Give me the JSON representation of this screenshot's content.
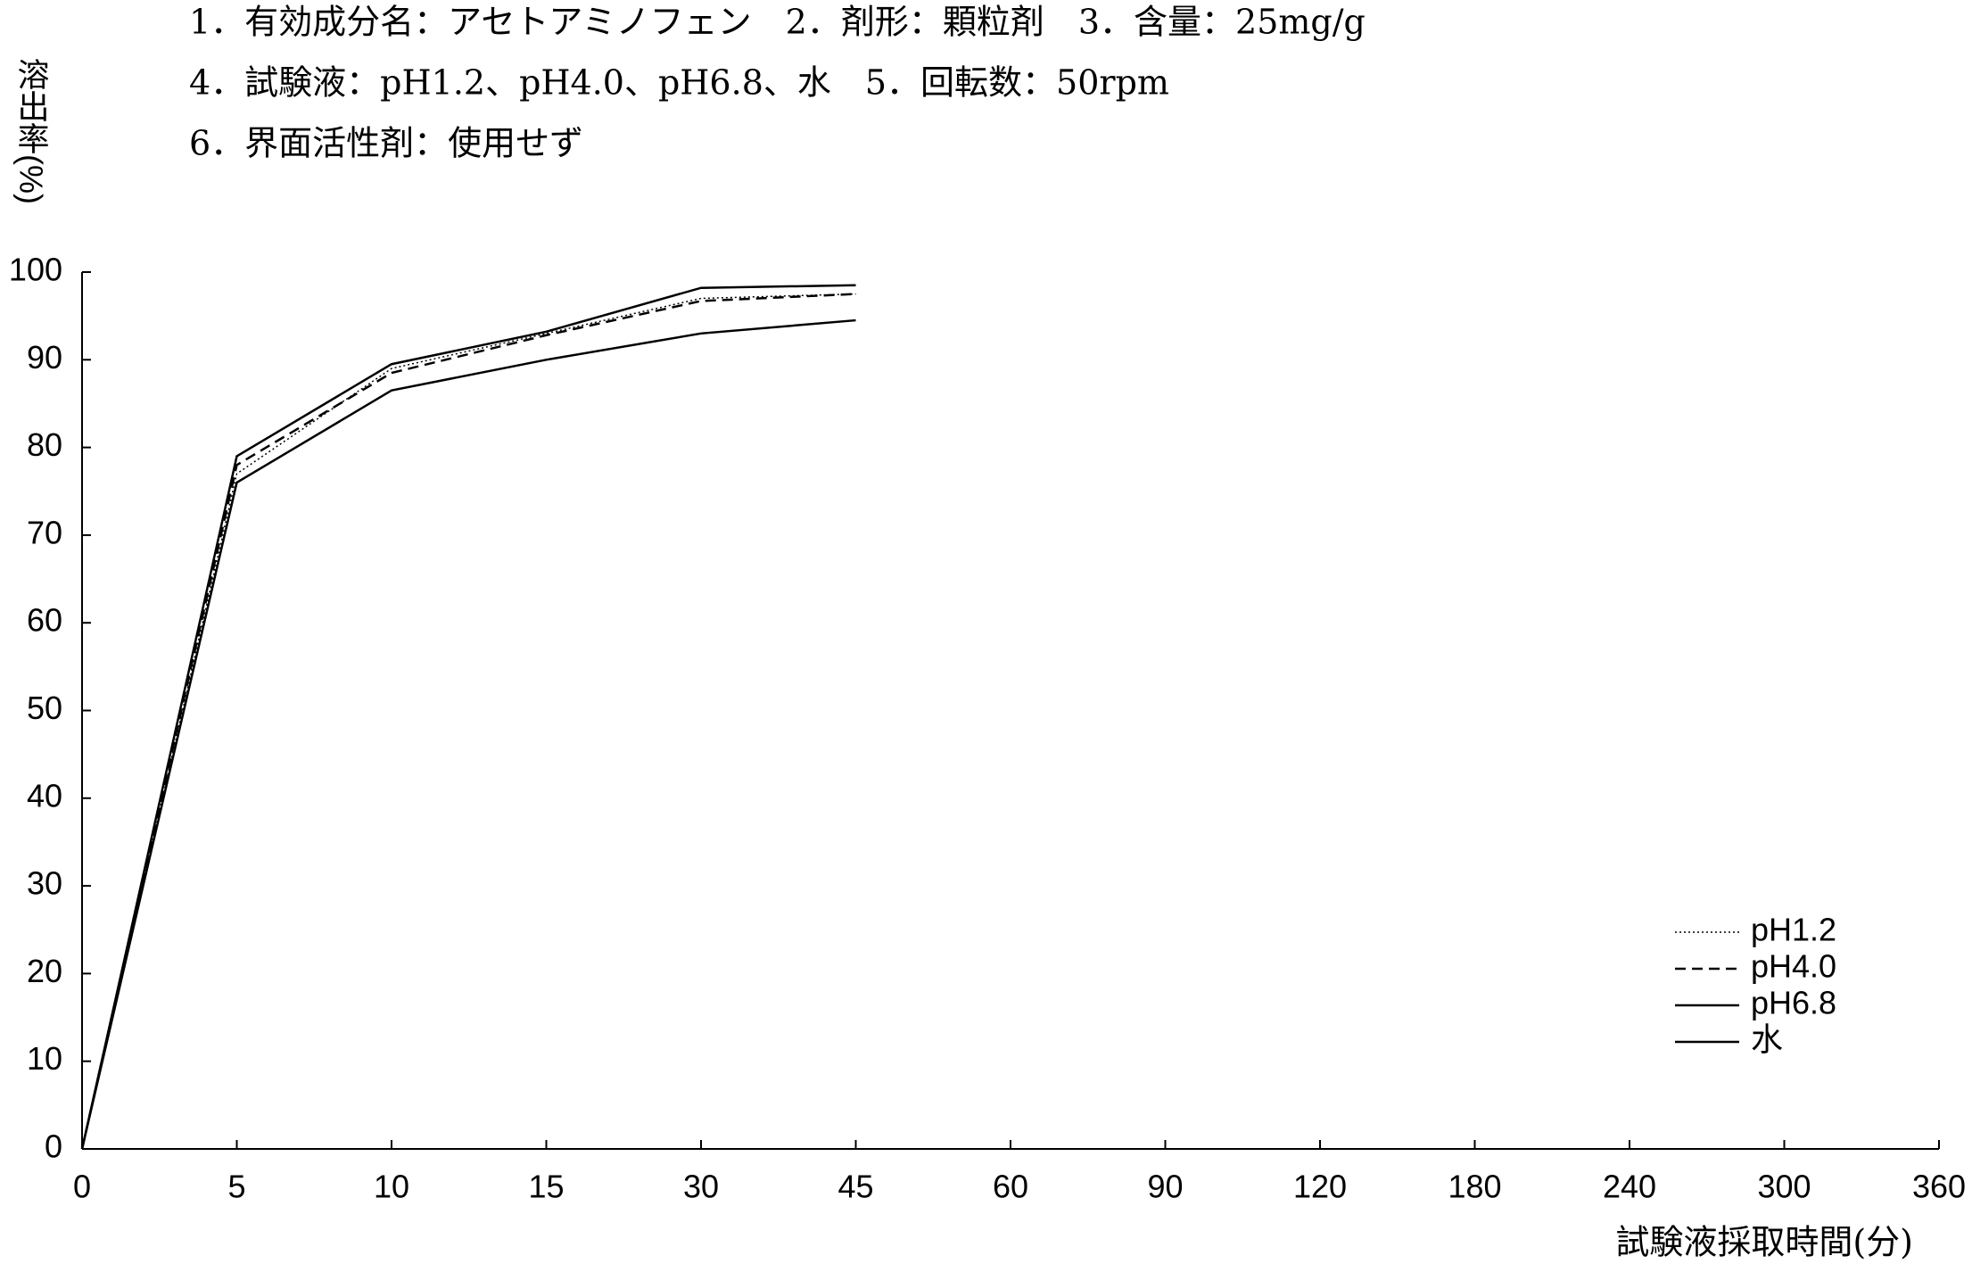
{
  "chart_data": {
    "type": "line",
    "header_lines": [
      "1．有効成分名：アセトアミノフェン　2．剤形：顆粒剤　3．含量：25mg/g",
      "4．試験液：pH1.2、pH4.0、pH6.8、水　5．回転数：50rpm",
      "6．界面活性剤：使用せず"
    ],
    "y_label": "溶出率(%)",
    "x_label": "試験液採取時間(分)",
    "categories": [
      "0",
      "5",
      "10",
      "15",
      "30",
      "45",
      "60",
      "90",
      "120",
      "180",
      "240",
      "300",
      "360"
    ],
    "series": [
      {
        "name": "pH1.2",
        "color": "#000000",
        "style": "dotted",
        "values": [
          0,
          77,
          89,
          93,
          97,
          97.5,
          null,
          null,
          null,
          null,
          null,
          null,
          null
        ]
      },
      {
        "name": "pH4.0",
        "color": "#000000",
        "style": "dashed",
        "values": [
          0,
          78,
          88.5,
          92.8,
          96.7,
          97.5,
          null,
          null,
          null,
          null,
          null,
          null,
          null
        ]
      },
      {
        "name": "pH6.8",
        "color": "#000000",
        "style": "solid",
        "values": [
          0,
          79,
          89.5,
          93.2,
          98.2,
          98.5,
          null,
          null,
          null,
          null,
          null,
          null,
          null
        ]
      },
      {
        "name": "水",
        "color": "#000000",
        "style": "solid",
        "values": [
          0,
          76,
          86.5,
          90,
          93,
          94.5,
          null,
          null,
          null,
          null,
          null,
          null,
          null
        ]
      }
    ],
    "ylim": [
      0,
      100
    ],
    "yticks": [
      0,
      10,
      20,
      30,
      40,
      50,
      60,
      70,
      80,
      90,
      100
    ],
    "grid": false,
    "legend": "lower-right"
  }
}
